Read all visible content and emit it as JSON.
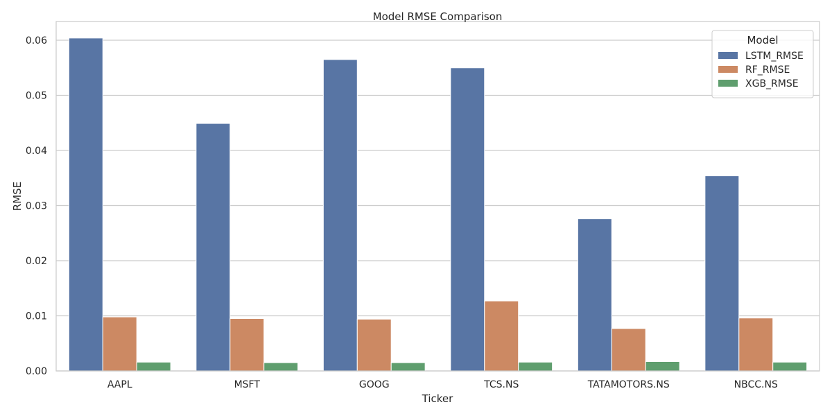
{
  "chart_data": {
    "type": "bar",
    "title": "Model RMSE Comparison",
    "xlabel": "Ticker",
    "ylabel": "RMSE",
    "categories": [
      "AAPL",
      "MSFT",
      "GOOG",
      "TCS.NS",
      "TATAMOTORS.NS",
      "NBCC.NS"
    ],
    "series": [
      {
        "name": "LSTM_RMSE",
        "color": "#5875a4",
        "values": [
          0.0604,
          0.0449,
          0.0565,
          0.055,
          0.0276,
          0.0354
        ]
      },
      {
        "name": "RF_RMSE",
        "color": "#cc8963",
        "values": [
          0.0098,
          0.0095,
          0.0094,
          0.0127,
          0.0077,
          0.0096
        ]
      },
      {
        "name": "XGB_RMSE",
        "color": "#5f9e6e",
        "values": [
          0.0016,
          0.0015,
          0.0015,
          0.0016,
          0.0017,
          0.0016
        ]
      }
    ],
    "ylim": [
      0,
      0.0634
    ],
    "yticks": [
      "0.00",
      "0.01",
      "0.02",
      "0.03",
      "0.04",
      "0.05",
      "0.06"
    ],
    "ytick_values": [
      0,
      0.01,
      0.02,
      0.03,
      0.04,
      0.05,
      0.06
    ],
    "grid": true,
    "legend": {
      "title": "Model",
      "placement": "top-right"
    }
  }
}
